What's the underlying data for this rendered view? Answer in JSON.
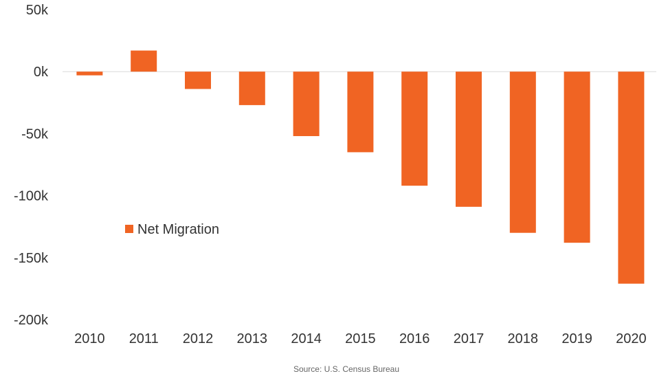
{
  "chart_data": {
    "type": "bar",
    "categories": [
      "2010",
      "2011",
      "2012",
      "2013",
      "2014",
      "2015",
      "2016",
      "2017",
      "2018",
      "2019",
      "2020"
    ],
    "series": [
      {
        "name": "Net Migration",
        "values": [
          -3000,
          17000,
          -14000,
          -27000,
          -52000,
          -65000,
          -92000,
          -109000,
          -130000,
          -138000,
          -171000
        ]
      }
    ],
    "title": "",
    "xlabel": "",
    "ylabel": "",
    "ylim": [
      -200000,
      50000
    ],
    "y_ticks": [
      50000,
      0,
      -50000,
      -100000,
      -150000,
      -200000
    ],
    "y_tick_labels": [
      "50k",
      "0k",
      "-50k",
      "-100k",
      "-150k",
      "-200k"
    ],
    "grid": false,
    "legend_placement": "center-left",
    "bar_color": "#F06423",
    "zero_line_color": "#d9d9d9",
    "source_note": "Source: U.S. Census Bureau"
  }
}
